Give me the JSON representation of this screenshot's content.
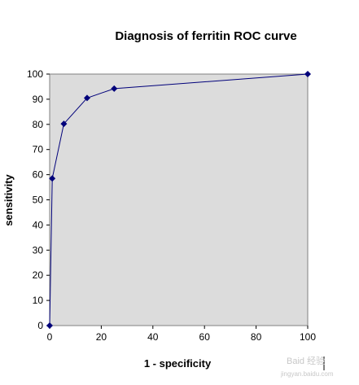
{
  "chart_data": {
    "type": "line",
    "title": "Diagnosis of ferritin ROC curve",
    "xlabel": "1 - specificity",
    "ylabel": "sensitivity",
    "xlim": [
      0,
      100
    ],
    "ylim": [
      0,
      100
    ],
    "xticks": [
      "0",
      "20",
      "40",
      "60",
      "80",
      "100"
    ],
    "yticks": [
      "0",
      "10",
      "20",
      "30",
      "40",
      "50",
      "60",
      "70",
      "80",
      "90",
      "100"
    ],
    "grid": false,
    "legend": "none",
    "series": [
      {
        "x": [
          0,
          1,
          5.5,
          14.5,
          25,
          100
        ],
        "y": [
          0,
          58.5,
          80.2,
          90.5,
          94.2,
          100
        ],
        "color": "#00007a",
        "marker": "diamond"
      }
    ],
    "plot_background": "#dcdcdc"
  },
  "watermark": {
    "text": "Baid 经验",
    "url": "jingyan.baidu.com"
  }
}
